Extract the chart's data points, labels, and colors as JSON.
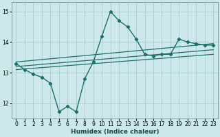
{
  "title": "",
  "xlabel": "Humidex (Indice chaleur)",
  "ylabel": "",
  "bg_color": "#cce8eb",
  "grid_color": "#aacccc",
  "line_color": "#1a7068",
  "xlim": [
    -0.5,
    23.5
  ],
  "ylim": [
    11.5,
    15.3
  ],
  "xticks": [
    0,
    1,
    2,
    3,
    4,
    5,
    6,
    7,
    8,
    9,
    10,
    11,
    12,
    13,
    14,
    15,
    16,
    17,
    18,
    19,
    20,
    21,
    22,
    23
  ],
  "yticks": [
    12,
    13,
    14,
    15
  ],
  "lines": [
    {
      "x": [
        0,
        1,
        2,
        3,
        4,
        5,
        6,
        7,
        8,
        9,
        10,
        11,
        12,
        13,
        14,
        15,
        16,
        17,
        18,
        19,
        20,
        21,
        22,
        23
      ],
      "y": [
        13.3,
        13.1,
        12.95,
        12.85,
        12.65,
        11.72,
        11.9,
        11.72,
        12.8,
        13.35,
        14.2,
        15.0,
        14.7,
        14.5,
        14.1,
        13.6,
        13.55,
        13.6,
        13.6,
        14.1,
        14.0,
        13.95,
        13.9,
        13.9
      ],
      "marker": true,
      "lw": 1.0
    },
    {
      "x": [
        0,
        23
      ],
      "y": [
        13.35,
        13.95
      ],
      "marker": false,
      "lw": 0.9
    },
    {
      "x": [
        0,
        23
      ],
      "y": [
        13.2,
        13.75
      ],
      "marker": false,
      "lw": 0.9
    },
    {
      "x": [
        0,
        23
      ],
      "y": [
        13.1,
        13.6
      ],
      "marker": false,
      "lw": 0.9
    }
  ]
}
